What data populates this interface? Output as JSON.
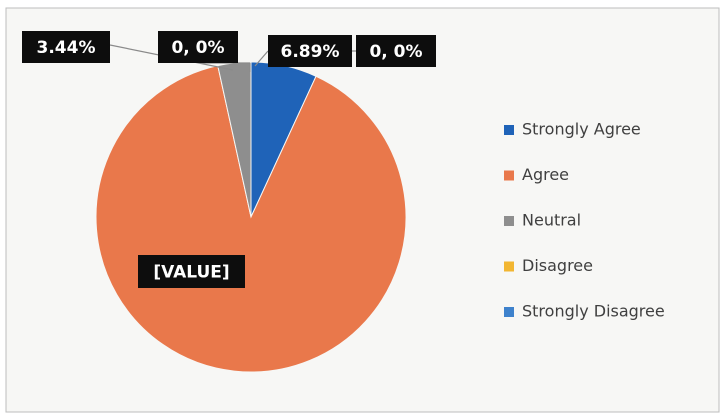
{
  "chart_data": {
    "type": "pie",
    "categories": [
      "Strongly Agree",
      "Agree",
      "Neutral",
      "Disagree",
      "Strongly Disagree"
    ],
    "values": [
      6.89,
      89.67,
      3.44,
      0,
      0
    ],
    "value_labels": [
      "6.89%",
      "[VALUE]",
      "3.44%",
      "0, 0%",
      "0, 0%"
    ],
    "colors": [
      "#1f63b8",
      "#e9784b",
      "#8e8e8e",
      "#f2b631",
      "#3e82cc"
    ],
    "legend": "right"
  }
}
